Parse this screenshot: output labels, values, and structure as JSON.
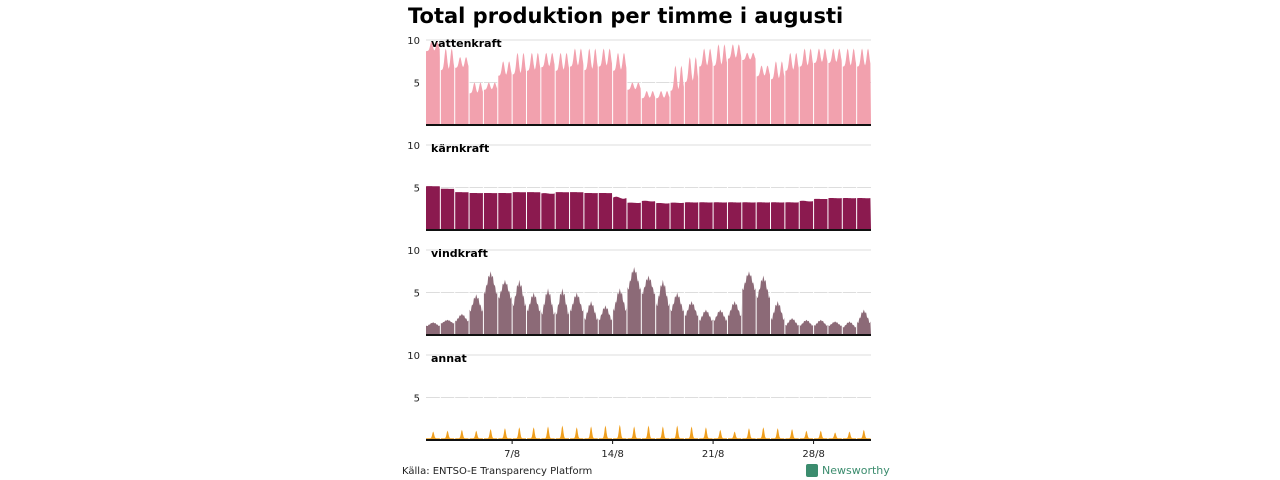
{
  "title": "Total produktion per timme i augusti",
  "source": "Källa: ENTSO-E Transparency Platform",
  "brand": "Newsworthy",
  "colors": {
    "vattenkraft": "#f2a1ae",
    "karnkraft": "#8b1a4f",
    "vindkraft": "#8c6a77",
    "annat": "#f0a020",
    "grid": "#dddddd",
    "baseline": "#111111",
    "brand": "#3b8c6e"
  },
  "chart_data": {
    "type": "area",
    "xlabel": "",
    "ylabel": "",
    "x_ticks": [
      "7/8",
      "14/8",
      "21/8",
      "28/8"
    ],
    "x_tick_days": [
      7,
      14,
      21,
      28
    ],
    "x_range_days": [
      1,
      31
    ],
    "ylim": [
      0,
      10
    ],
    "y_ticks": [
      5,
      10
    ],
    "grid": true,
    "series": [
      {
        "name": "vattenkraft",
        "x_days": [
          1,
          2,
          3,
          4,
          5,
          6,
          7,
          8,
          9,
          10,
          11,
          12,
          13,
          14,
          15,
          16,
          17,
          18,
          19,
          20,
          21,
          22,
          23,
          24,
          25,
          26,
          27,
          28,
          29,
          30,
          31
        ],
        "daily_low": [
          8.5,
          6.0,
          6.5,
          3.5,
          4.0,
          5.5,
          5.5,
          6.0,
          6.5,
          6.0,
          6.5,
          6.0,
          6.5,
          6.0,
          4.0,
          3.0,
          3.0,
          3.5,
          4.5,
          6.5,
          6.5,
          7.5,
          7.5,
          5.5,
          5.0,
          6.0,
          6.5,
          7.0,
          7.0,
          6.5,
          6.5
        ],
        "daily_high": [
          9.8,
          9.0,
          8.0,
          5.0,
          5.0,
          7.5,
          8.5,
          8.5,
          8.5,
          8.5,
          9.0,
          9.0,
          9.0,
          8.5,
          5.0,
          4.0,
          4.0,
          7.0,
          8.0,
          9.0,
          9.5,
          9.5,
          8.5,
          7.0,
          7.5,
          8.5,
          9.0,
          9.0,
          9.0,
          9.0,
          9.0
        ]
      },
      {
        "name": "kärnkraft",
        "x_days": [
          1,
          2,
          3,
          4,
          5,
          6,
          7,
          8,
          9,
          10,
          11,
          12,
          13,
          14,
          15,
          16,
          17,
          18,
          19,
          20,
          21,
          22,
          23,
          24,
          25,
          26,
          27,
          28,
          29,
          30,
          31
        ],
        "daily_low": [
          5.1,
          4.8,
          4.4,
          4.3,
          4.3,
          4.3,
          4.4,
          4.4,
          4.1,
          4.4,
          4.4,
          4.3,
          4.3,
          3.2,
          3.1,
          3.2,
          3.0,
          3.1,
          3.2,
          3.2,
          3.2,
          3.2,
          3.2,
          3.2,
          3.2,
          3.2,
          3.2,
          3.6,
          3.7,
          3.7,
          3.7
        ],
        "daily_high": [
          5.2,
          4.9,
          4.5,
          4.4,
          4.4,
          4.4,
          4.5,
          4.5,
          4.5,
          4.5,
          4.5,
          4.4,
          4.4,
          4.4,
          3.3,
          3.6,
          3.3,
          3.3,
          3.3,
          3.3,
          3.3,
          3.3,
          3.3,
          3.3,
          3.3,
          3.3,
          3.6,
          3.7,
          3.8,
          3.8,
          3.8
        ]
      },
      {
        "name": "vindkraft",
        "x_days": [
          1,
          2,
          3,
          4,
          5,
          6,
          7,
          8,
          9,
          10,
          11,
          12,
          13,
          14,
          15,
          16,
          17,
          18,
          19,
          20,
          21,
          22,
          23,
          24,
          25,
          26,
          27,
          28,
          29,
          30,
          31
        ],
        "daily_low": [
          1.0,
          1.3,
          1.5,
          2.5,
          4.5,
          4.0,
          3.0,
          2.5,
          2.0,
          2.0,
          2.5,
          1.5,
          1.5,
          2.5,
          5.0,
          4.5,
          3.0,
          2.5,
          2.0,
          1.5,
          1.5,
          2.0,
          5.0,
          4.0,
          1.5,
          1.0,
          1.0,
          1.0,
          1.0,
          0.8,
          1.2
        ],
        "daily_high": [
          1.5,
          1.8,
          2.5,
          4.8,
          7.5,
          6.5,
          6.5,
          5.0,
          5.5,
          5.5,
          5.0,
          4.0,
          3.5,
          5.5,
          8.0,
          7.0,
          6.5,
          5.0,
          4.0,
          3.0,
          3.0,
          4.0,
          7.5,
          7.0,
          4.0,
          2.0,
          1.8,
          1.8,
          1.6,
          1.6,
          3.0
        ]
      },
      {
        "name": "annat",
        "x_days": [
          1,
          2,
          3,
          4,
          5,
          6,
          7,
          8,
          9,
          10,
          11,
          12,
          13,
          14,
          15,
          16,
          17,
          18,
          19,
          20,
          21,
          22,
          23,
          24,
          25,
          26,
          27,
          28,
          29,
          30,
          31
        ],
        "daily_low": [
          0.2,
          0.2,
          0.2,
          0.2,
          0.2,
          0.2,
          0.2,
          0.2,
          0.2,
          0.2,
          0.2,
          0.2,
          0.2,
          0.2,
          0.2,
          0.2,
          0.2,
          0.2,
          0.2,
          0.2,
          0.2,
          0.2,
          0.2,
          0.2,
          0.2,
          0.2,
          0.2,
          0.2,
          0.2,
          0.2,
          0.2
        ],
        "daily_high": [
          1.0,
          1.1,
          1.2,
          1.1,
          1.3,
          1.4,
          1.5,
          1.5,
          1.6,
          1.7,
          1.5,
          1.6,
          1.7,
          1.8,
          1.6,
          1.7,
          1.6,
          1.7,
          1.6,
          1.5,
          1.2,
          1.0,
          1.4,
          1.5,
          1.4,
          1.3,
          1.1,
          1.1,
          0.9,
          1.0,
          1.2
        ]
      }
    ]
  }
}
